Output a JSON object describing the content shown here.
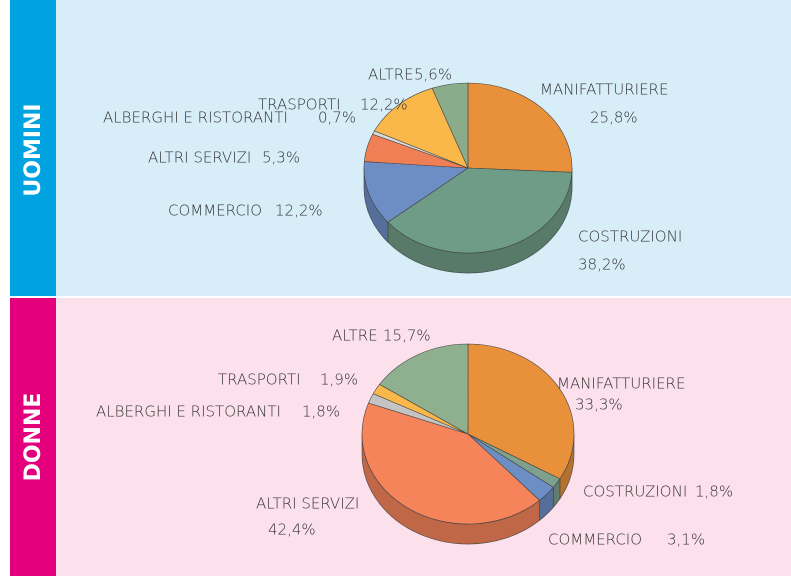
{
  "chart_data": [
    {
      "type": "pie",
      "title": "UOMINI",
      "categories": [
        "MANIFATTURIERE",
        "COSTRUZIONI",
        "COMMERCIO",
        "ALTRI SERVIZI",
        "ALBERGHI E RISTORANTI",
        "TRASPORTI",
        "ALTRE"
      ],
      "values": [
        25.8,
        38.2,
        12.2,
        5.3,
        0.7,
        12.2,
        5.6
      ],
      "value_labels": [
        "25,8%",
        "38,2%",
        "12,2%",
        "5,3%",
        "0,7%",
        "12,2%",
        "5,6%"
      ],
      "colors": [
        "#e8913a",
        "#6f9c87",
        "#6d8ec5",
        "#f07f55",
        "#d9d9d9",
        "#fbb84a",
        "#8aac8a"
      ]
    },
    {
      "type": "pie",
      "title": "DONNE",
      "categories": [
        "MANIFATTURIERE",
        "COSTRUZIONI",
        "COMMERCIO",
        "ALTRI SERVIZI",
        "ALBERGHI E RISTORANTI",
        "TRASPORTI",
        "ALTRE"
      ],
      "values": [
        33.3,
        1.8,
        3.1,
        42.4,
        1.8,
        1.9,
        15.7
      ],
      "value_labels": [
        "33,3%",
        "1,8%",
        "3,1%",
        "42,4%",
        "1,8%",
        "1,9%",
        "15,7%"
      ],
      "colors": [
        "#e8913a",
        "#7fa08c",
        "#6d8ec5",
        "#f5845a",
        "#c4c4c4",
        "#fbb84a",
        "#8fb08e"
      ]
    }
  ]
}
